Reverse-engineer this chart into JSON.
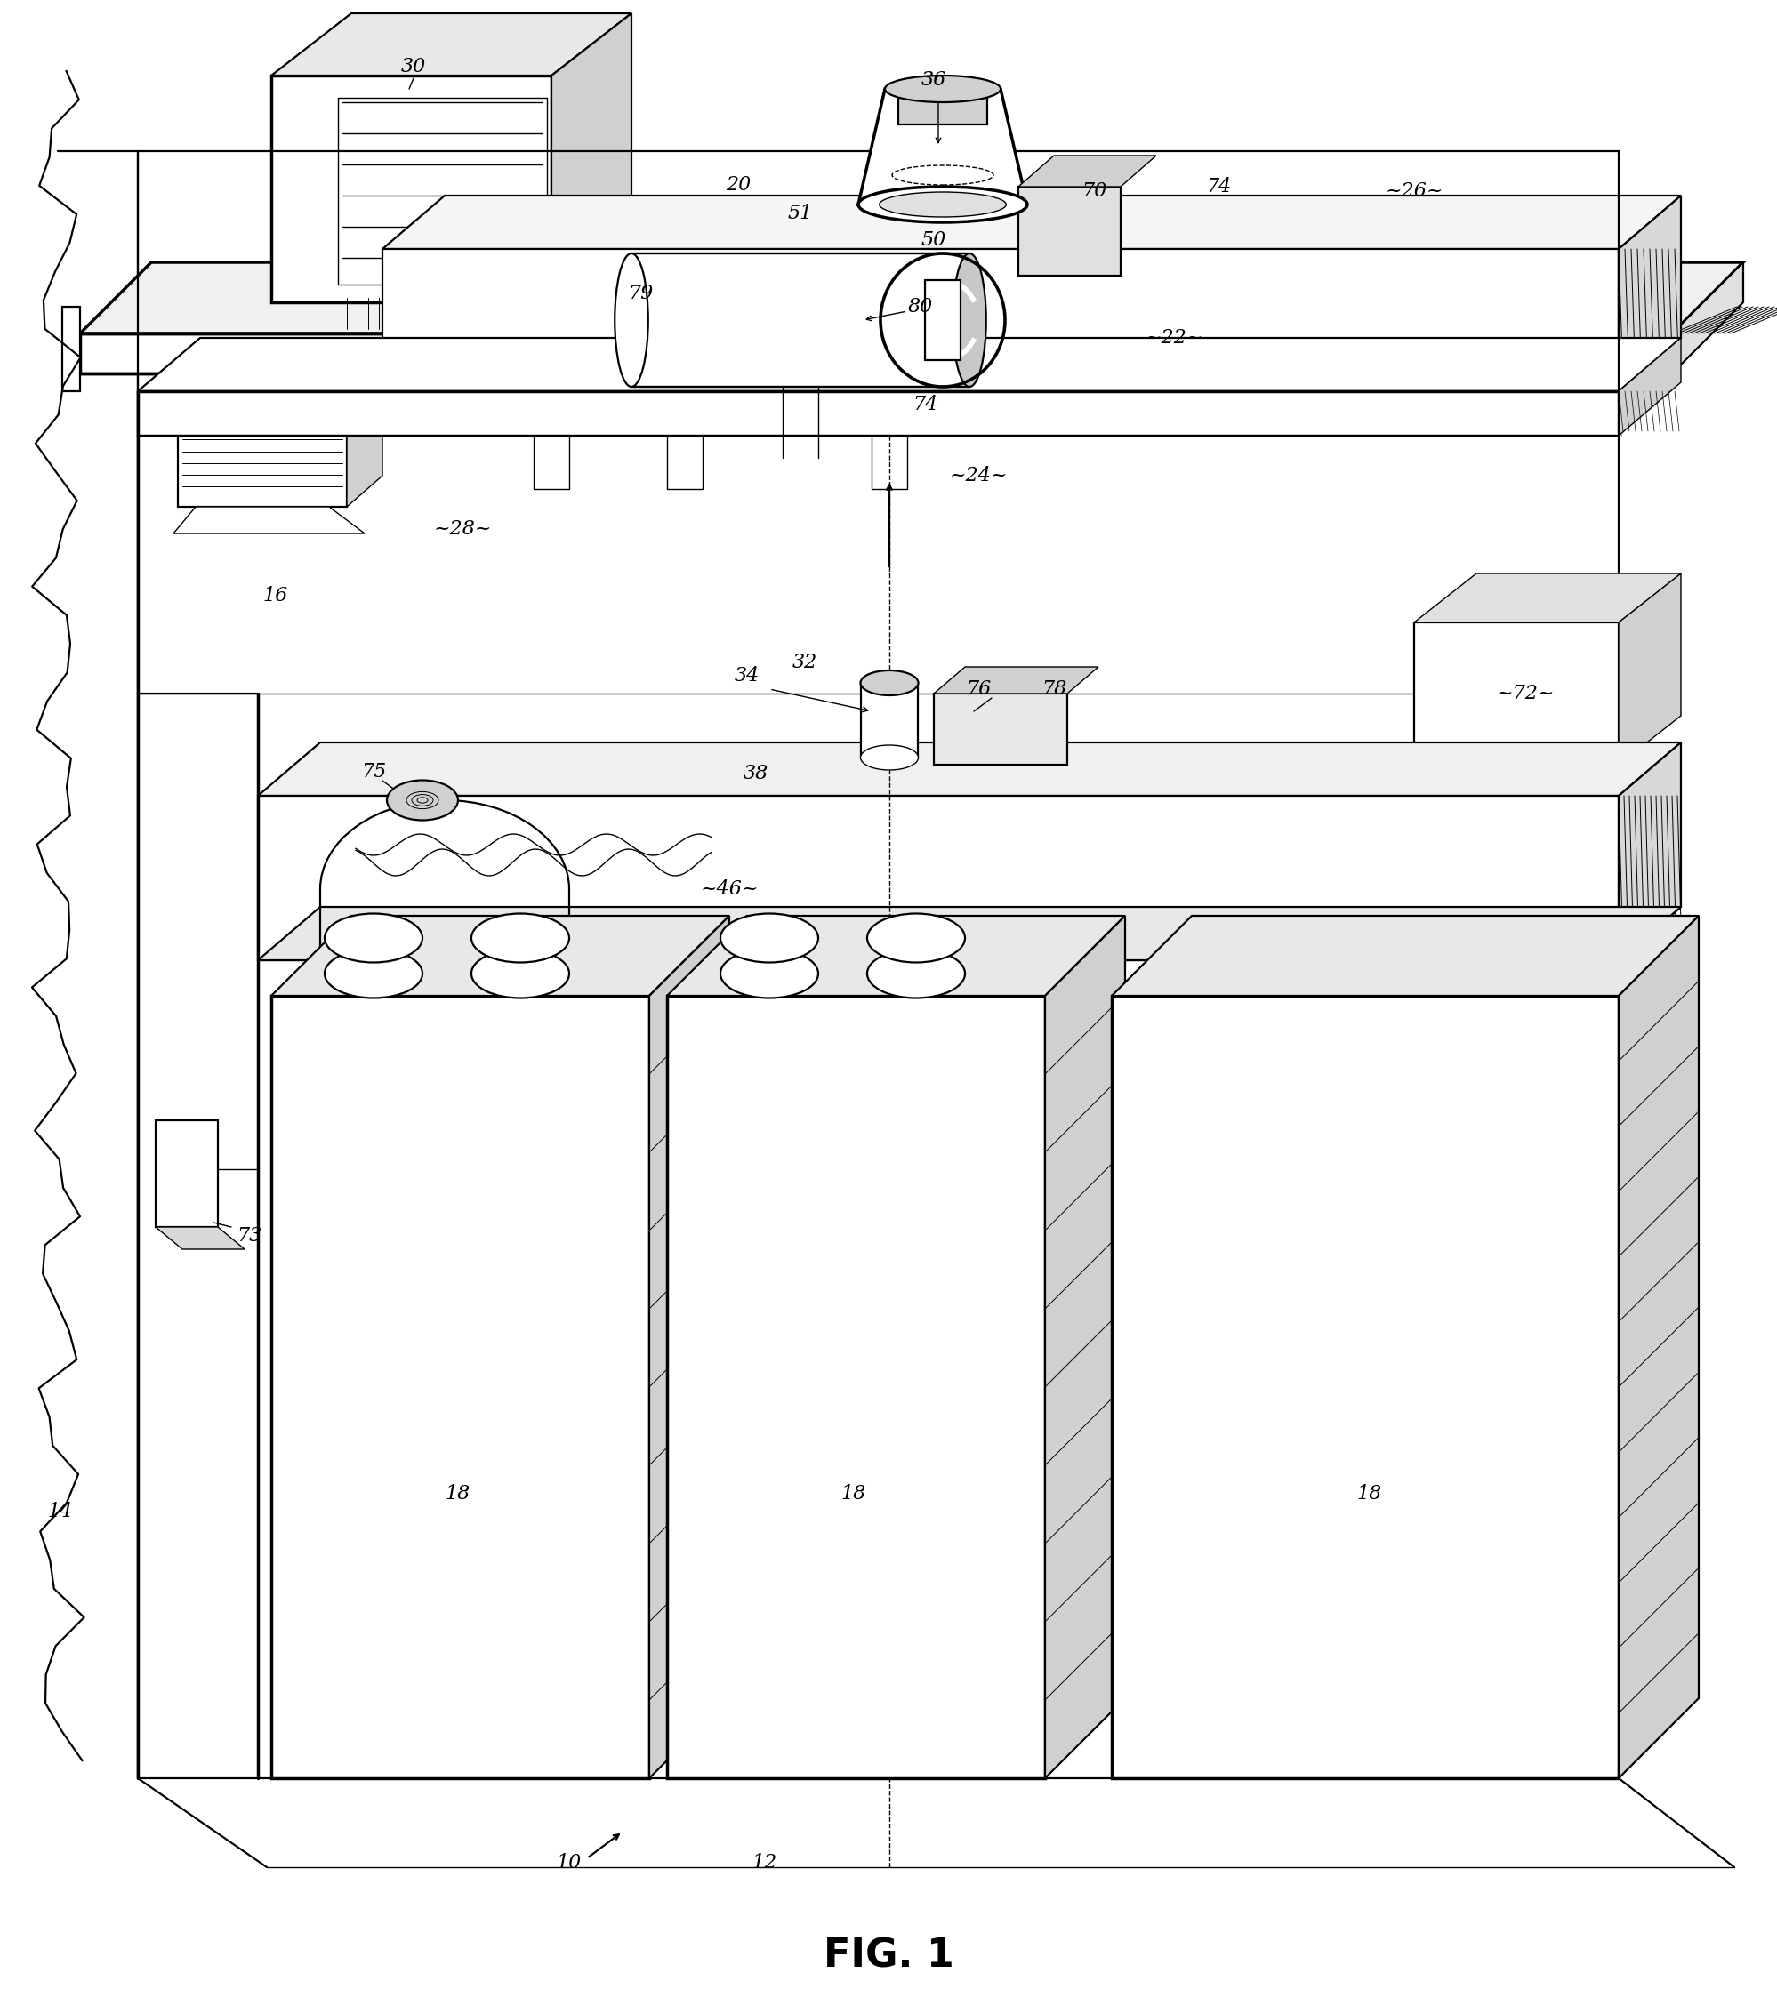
{
  "fig_label": "FIG. 1",
  "background_color": "#ffffff",
  "line_color": "#000000",
  "lw_main": 1.6,
  "lw_thick": 2.5,
  "lw_thin": 1.0,
  "lw_xtra": 0.7,
  "label_fs": 16,
  "fig1_fs": 32
}
